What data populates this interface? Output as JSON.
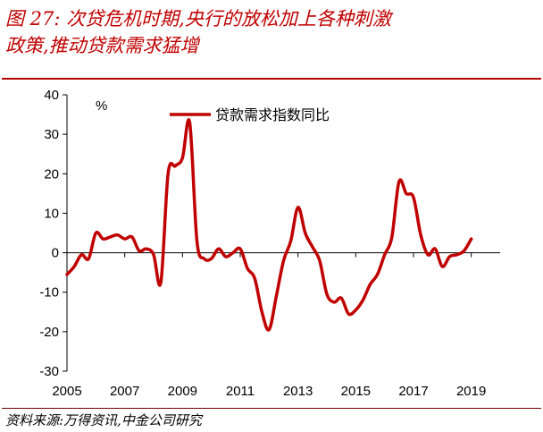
{
  "figure": {
    "title_line1": "图 27: 次贷危机时期,央行的放松加上各种刺激",
    "title_line2": "政策,推动贷款需求猛增",
    "source": "资料来源:万得资讯,中金公司研究"
  },
  "colors": {
    "title": "#c00000",
    "series": "#c00000"
  },
  "chart_data": {
    "type": "line",
    "ylabel": "%",
    "ylim": [
      -30,
      40
    ],
    "yticks": [
      -30,
      -20,
      -10,
      0,
      10,
      20,
      30,
      40
    ],
    "xlim": [
      2005,
      2020
    ],
    "xticks": [
      2005,
      2007,
      2009,
      2011,
      2013,
      2015,
      2017,
      2019
    ],
    "grid": false,
    "legend": "top",
    "series": [
      {
        "name": "贷款需求指数同比",
        "x": [
          2005.0,
          2005.25,
          2005.5,
          2005.75,
          2006.0,
          2006.25,
          2006.5,
          2006.75,
          2007.0,
          2007.25,
          2007.5,
          2007.75,
          2008.0,
          2008.25,
          2008.5,
          2008.75,
          2009.0,
          2009.25,
          2009.5,
          2009.75,
          2010.0,
          2010.25,
          2010.5,
          2010.75,
          2011.0,
          2011.25,
          2011.5,
          2011.75,
          2012.0,
          2012.25,
          2012.5,
          2012.75,
          2013.0,
          2013.25,
          2013.5,
          2013.75,
          2014.0,
          2014.25,
          2014.5,
          2014.75,
          2015.0,
          2015.25,
          2015.5,
          2015.75,
          2016.0,
          2016.25,
          2016.5,
          2016.75,
          2017.0,
          2017.25,
          2017.5,
          2017.75,
          2018.0,
          2018.25,
          2018.5,
          2018.75,
          2019.0,
          2019.25,
          2019.5,
          2019.75
        ],
        "values": [
          -5.5,
          -3.5,
          -0.5,
          -1.5,
          5.0,
          3.5,
          4.0,
          4.5,
          3.5,
          4.0,
          0.5,
          1.0,
          -0.5,
          -7.5,
          20.0,
          22.0,
          24.0,
          33.0,
          3.0,
          -1.5,
          -1.5,
          1.0,
          -1.0,
          0.0,
          1.0,
          -4.0,
          -6.5,
          -15.0,
          -19.5,
          -11.0,
          -2.0,
          3.0,
          11.5,
          5.0,
          1.5,
          -2.0,
          -10.5,
          -12.5,
          -11.5,
          -15.5,
          -14.5,
          -12.0,
          -8.0,
          -5.5,
          -0.5,
          4.0,
          18.0,
          15.0,
          14.0,
          4.5,
          -0.5,
          1.0,
          -3.5,
          -1.0,
          -0.5,
          0.5,
          3.5,
          null,
          null,
          null
        ]
      }
    ]
  }
}
